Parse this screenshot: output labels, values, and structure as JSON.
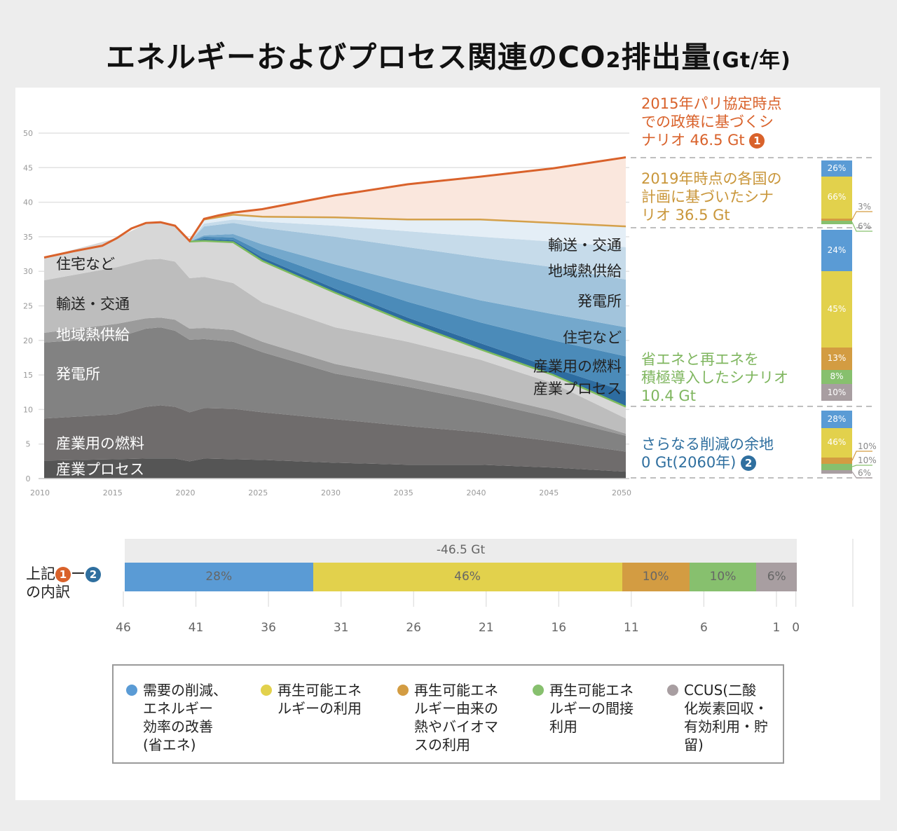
{
  "title": {
    "main": "エネルギーおよびプロセス関連のCO",
    "sub": "2",
    "tail": "排出量",
    "unit": "(Gt/年)"
  },
  "chart_data": {
    "type": "area",
    "ylim": [
      0,
      50
    ],
    "yticks": [
      0,
      5,
      10,
      15,
      20,
      25,
      30,
      35,
      40,
      45,
      50
    ],
    "xticks": [
      2010,
      2015,
      2020,
      2025,
      2030,
      2035,
      2040,
      2045,
      2050
    ],
    "grid": true,
    "emissions": {
      "years": [
        2010,
        2015,
        2017,
        2018,
        2019,
        2020,
        2021,
        2023,
        2025,
        2030,
        2035,
        2040,
        2045,
        2050
      ],
      "series": [
        {
          "name": "産業プロセス",
          "color": "#555555",
          "values": [
            2.6,
            2.8,
            2.9,
            2.9,
            2.9,
            2.5,
            2.9,
            2.8,
            2.7,
            2.3,
            2.0,
            2.0,
            1.6,
            1.0
          ]
        },
        {
          "name": "産業用の燃料",
          "color": "#6f6c6c",
          "values": [
            6.1,
            6.5,
            7.5,
            7.7,
            7.5,
            7.1,
            7.3,
            7.3,
            6.9,
            6.3,
            5.6,
            4.7,
            3.8,
            2.9
          ]
        },
        {
          "name": "発電所",
          "color": "#828282",
          "values": [
            11.0,
            11.1,
            11.3,
            11.3,
            11.0,
            10.5,
            10.0,
            9.7,
            8.7,
            6.6,
            5.7,
            4.5,
            3.4,
            2.3
          ]
        },
        {
          "name": "地域熱供給",
          "color": "#9b9b9b",
          "values": [
            1.4,
            2.0,
            1.5,
            1.4,
            1.6,
            1.6,
            1.6,
            1.7,
            1.5,
            1.4,
            1.2,
            1.1,
            1.0,
            0.3
          ]
        },
        {
          "name": "輸送・交通",
          "color": "#bdbdbd",
          "values": [
            7.6,
            8.2,
            8.5,
            8.5,
            8.4,
            7.3,
            7.4,
            6.8,
            5.7,
            5.3,
            5.3,
            4.9,
            4.0,
            2.2
          ]
        },
        {
          "name": "住宅など",
          "color": "#d7d7d7",
          "values": [
            3.3,
            4.2,
            5.2,
            5.3,
            5.2,
            5.3,
            5.2,
            5.9,
            6.0,
            5.0,
            2.8,
            1.5,
            1.2,
            1.7
          ]
        }
      ]
    },
    "reductions": {
      "years": [
        2020,
        2021,
        2023,
        2025,
        2030,
        2035,
        2040,
        2045,
        2050
      ],
      "series": [
        {
          "name": "産業プロセス",
          "color": "#2d6ca0",
          "values": [
            0,
            0.3,
            0.3,
            0.5,
            0.6,
            0.7,
            0.9,
            1.0,
            2.2
          ]
        },
        {
          "name": "産業用の燃料",
          "color": "#4b8bb9",
          "values": [
            0,
            0.3,
            0.4,
            0.8,
            1.5,
            2.3,
            3.0,
            4.0,
            5.1
          ]
        },
        {
          "name": "住宅など",
          "color": "#74a8cc",
          "values": [
            0,
            0.2,
            0.5,
            1.1,
            2.0,
            2.7,
            3.2,
            3.8,
            4.2
          ]
        },
        {
          "name": "発電所",
          "color": "#a2c4dc",
          "values": [
            0,
            1.3,
            1.6,
            2.4,
            4.0,
            5.2,
            6.2,
            6.8,
            6.9
          ]
        },
        {
          "name": "地域熱供給",
          "color": "#c6dbea",
          "values": [
            0,
            0.4,
            0.5,
            0.9,
            1.6,
            2.3,
            3.0,
            3.7,
            4.7
          ]
        },
        {
          "name": "輸送・交通",
          "color": "#e4eef6",
          "values": [
            0,
            0.6,
            0.7,
            0.7,
            1.2,
            1.7,
            2.5,
            2.7,
            3.0
          ]
        }
      ]
    },
    "paris_2015_line": {
      "color": "#d9622b",
      "fill": "#fae7dd",
      "years": [
        2010,
        2012,
        2014,
        2015,
        2016,
        2017,
        2018,
        2019,
        2020,
        2021,
        2022,
        2023,
        2025,
        2028,
        2030,
        2031,
        2035,
        2040,
        2045,
        2050
      ],
      "values": [
        32,
        32.9,
        33.7,
        34.8,
        36.2,
        37.0,
        37.1,
        36.6,
        34.4,
        37.6,
        38.1,
        38.5,
        39.0,
        40.2,
        41.0,
        41.3,
        42.6,
        43.7,
        44.9,
        46.5
      ]
    },
    "plans_2019_line": {
      "color": "#d4a04a",
      "years": [
        2021,
        2023,
        2025,
        2030,
        2035,
        2040,
        2045,
        2050
      ],
      "values": [
        37.5,
        38.2,
        37.9,
        37.8,
        37.5,
        37.5,
        37.0,
        36.5
      ]
    },
    "aggressive_line": {
      "color": "#7dbb5e"
    },
    "left_labels": [
      "住宅など",
      "輸送・交通",
      "地域熱供給",
      "発電所",
      "産業用の燃料",
      "産業プロセス"
    ],
    "right_labels": [
      "輸送・交通",
      "地域熱供給",
      "発電所",
      "住宅など",
      "産業用の燃料",
      "産業プロセス"
    ]
  },
  "scenarios": {
    "paris": {
      "text1": "2015年パリ協定時点",
      "text2": "での政策に基づくシ",
      "text3": "ナリオ 46.5 Gt",
      "num": "1",
      "color": "#d9622b"
    },
    "plans": {
      "text1": "2019年時点の各国の",
      "text2": "計画に基づいたシナ",
      "text3": "リオ 36.5 Gt",
      "color": "#c9963a"
    },
    "aggressive": {
      "text1": "省エネと再エネを",
      "text2": "積極導入したシナリオ",
      "text3": "10.4 Gt",
      "color": "#7fb65f"
    },
    "further": {
      "text1": "さらなる削減の余地",
      "text2": "0 Gt(2060年)",
      "num": "2",
      "color": "#2f6f9f"
    }
  },
  "side_bars": [
    {
      "segments": [
        {
          "pct": 26,
          "label": "26%"
        },
        {
          "pct": 66,
          "label": "66%"
        },
        {
          "pct": 3,
          "label": "3%"
        },
        {
          "pct": 6,
          "label": "6%"
        },
        {
          "pct": 0,
          "label": ""
        }
      ]
    },
    {
      "segments": [
        {
          "pct": 24,
          "label": "24%"
        },
        {
          "pct": 45,
          "label": "45%"
        },
        {
          "pct": 13,
          "label": "13%"
        },
        {
          "pct": 8,
          "label": "8%"
        },
        {
          "pct": 10,
          "label": "10%"
        }
      ]
    },
    {
      "segments": [
        {
          "pct": 28,
          "label": "28%"
        },
        {
          "pct": 46,
          "label": "46%"
        },
        {
          "pct": 10,
          "label": "10%"
        },
        {
          "pct": 10,
          "label": "10%"
        },
        {
          "pct": 6,
          "label": "6%"
        }
      ]
    }
  ],
  "category_colors": [
    "#5a9bd5",
    "#e2d14c",
    "#d39c42",
    "#87c06e",
    "#a89ea1"
  ],
  "breakdown": {
    "label1": "上記",
    "num1": "1",
    "dash": "ー",
    "num2": "2",
    "label2": "の内訳",
    "total": "-46.5 Gt",
    "segments": [
      {
        "pct": 28,
        "label": "28%"
      },
      {
        "pct": 46,
        "label": "46%"
      },
      {
        "pct": 10,
        "label": "10%"
      },
      {
        "pct": 10,
        "label": "10%"
      },
      {
        "pct": 6,
        "label": "6%"
      }
    ],
    "ticks": [
      "46",
      "41",
      "36",
      "31",
      "26",
      "21",
      "16",
      "11",
      "6",
      "1",
      "0"
    ]
  },
  "legend": [
    "需要の削減、\nエネルギー\n効率の改善\n(省エネ)",
    "再生可能エネ\nルギーの利用",
    "再生可能エネ\nルギー由来の\n熱やバイオマ\nスの利用",
    "再生可能エネ\nルギーの間接\n利用",
    "CCUS(二酸\n化炭素回収・\n有効利用・貯\n留)"
  ]
}
